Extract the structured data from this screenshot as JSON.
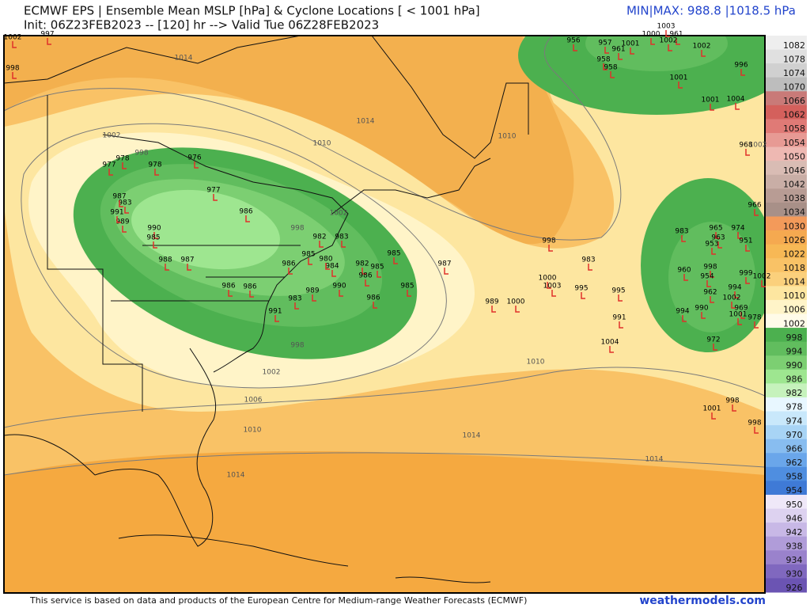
{
  "header": {
    "title": "ECMWF EPS | Ensemble Mean MSLP [hPa] & Cyclone Locations [ < 1001 hPa]",
    "subtitle": "Init: 06Z23FEB2023 -- [120] hr --> Valid Tue 06Z28FEB2023",
    "minmax": "MIN|MAX: 988.8 |1018.5 hPa"
  },
  "colorbar": {
    "labels": [
      "1082",
      "1078",
      "1074",
      "1070",
      "1066",
      "1062",
      "1058",
      "1054",
      "1050",
      "1046",
      "1042",
      "1038",
      "1034",
      "1030",
      "1026",
      "1022",
      "1018",
      "1014",
      "1010",
      "1006",
      "1002",
      "998",
      "994",
      "990",
      "986",
      "982",
      "978",
      "974",
      "970",
      "966",
      "962",
      "958",
      "954",
      "950",
      "946",
      "942",
      "938",
      "934",
      "930",
      "926"
    ]
  },
  "contours": {
    "labels": [
      "1014",
      "1014",
      "1010",
      "1010",
      "1002",
      "998",
      "998",
      "1002",
      "998",
      "1002",
      "1006",
      "1010",
      "1010",
      "1014",
      "1014",
      "1014",
      "1002"
    ]
  },
  "cyclones": {
    "labels": [
      "1002",
      "997",
      "998",
      "1003",
      "1000",
      "961",
      "1002",
      "956",
      "957",
      "1001",
      "961",
      "1002",
      "958",
      "958",
      "996",
      "1001",
      "1001",
      "1004",
      "968",
      "966",
      "976",
      "978",
      "977",
      "978",
      "977",
      "986",
      "982",
      "983",
      "985",
      "982",
      "985",
      "986",
      "985",
      "987",
      "985",
      "998",
      "983",
      "1000",
      "1003",
      "995",
      "995",
      "989",
      "1000",
      "991",
      "1004",
      "983",
      "965",
      "974",
      "963",
      "951",
      "953",
      "960",
      "998",
      "999",
      "1002",
      "954",
      "994",
      "962",
      "990",
      "994",
      "1002",
      "969",
      "1001",
      "978",
      "972",
      "1001",
      "998",
      "998",
      "990",
      "986",
      "991",
      "983",
      "989",
      "988",
      "987",
      "990",
      "985",
      "989",
      "991",
      "983",
      "987",
      "986",
      "984",
      "980",
      "986",
      "986"
    ]
  },
  "footer": {
    "credit": "This service is based on data and products of the European Centre for Medium-range Weather Forecasts (ECMWF)",
    "site": "weathermodels.com"
  }
}
